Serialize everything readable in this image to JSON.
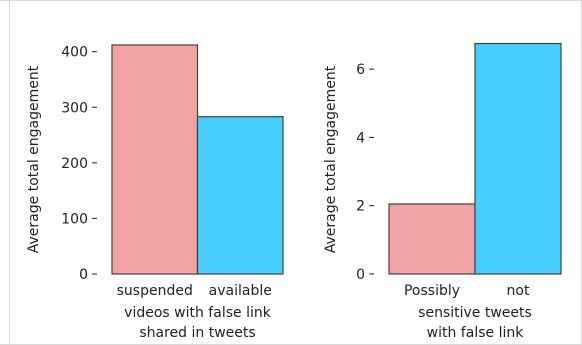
{
  "colors": {
    "background": "#ffffff",
    "frame": "#d9d9d9",
    "bar_edge": "#404040",
    "axis": "#222222"
  },
  "chart_data": [
    {
      "type": "bar",
      "categories": [
        "suspended",
        "available"
      ],
      "values": [
        412,
        283
      ],
      "colors": [
        "#f2a3a3",
        "#46cffd"
      ],
      "xlabel": "videos with false link\nshared in tweets",
      "ylabel": "Average total  engagement",
      "ylim": [
        0,
        430
      ],
      "yticks": [
        0,
        100,
        200,
        300,
        400
      ],
      "grid": false,
      "legend": null
    },
    {
      "type": "bar",
      "categories": [
        "Possibly",
        "not"
      ],
      "values": [
        2.05,
        6.75
      ],
      "colors": [
        "#f2a3a3",
        "#46cffd"
      ],
      "xlabel": "sensitive tweets\nwith false link",
      "ylabel": "Average total  engagement",
      "ylim": [
        0,
        7
      ],
      "yticks": [
        0,
        2,
        4,
        6
      ],
      "grid": false,
      "legend": null
    }
  ]
}
